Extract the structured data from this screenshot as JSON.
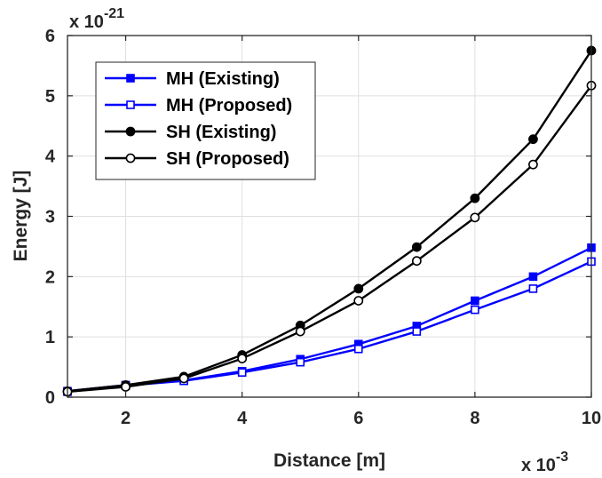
{
  "chart_data": {
    "type": "line",
    "title": "",
    "xlabel": "Distance [m]",
    "ylabel": "Energy [J]",
    "x_multiplier": "x 10",
    "x_exponent": "-3",
    "y_multiplier": "x 10",
    "y_exponent": "-21",
    "xlim": [
      1,
      10
    ],
    "ylim": [
      0,
      6
    ],
    "xticks": [
      2,
      4,
      6,
      8,
      10
    ],
    "yticks": [
      0,
      1,
      2,
      3,
      4,
      5,
      6
    ],
    "grid": true,
    "legend_position": "top-left",
    "x": [
      1,
      2,
      3,
      4,
      5,
      6,
      7,
      8,
      9,
      10
    ],
    "series": [
      {
        "name": "MH (Existing)",
        "color": "#0000ff",
        "marker": "square-filled",
        "values": [
          0.1,
          0.2,
          0.28,
          0.43,
          0.63,
          0.88,
          1.18,
          1.6,
          2.0,
          2.48
        ]
      },
      {
        "name": "MH (Proposed)",
        "color": "#0000ff",
        "marker": "square-open",
        "values": [
          0.09,
          0.19,
          0.27,
          0.41,
          0.58,
          0.8,
          1.09,
          1.45,
          1.8,
          2.25
        ]
      },
      {
        "name": "SH (Existing)",
        "color": "#000000",
        "marker": "circle-filled",
        "values": [
          0.1,
          0.2,
          0.34,
          0.7,
          1.19,
          1.8,
          2.49,
          3.3,
          4.28,
          5.75
        ]
      },
      {
        "name": "SH (Proposed)",
        "color": "#000000",
        "marker": "circle-open",
        "values": [
          0.09,
          0.17,
          0.31,
          0.64,
          1.09,
          1.6,
          2.26,
          2.98,
          3.86,
          5.17
        ]
      }
    ]
  }
}
